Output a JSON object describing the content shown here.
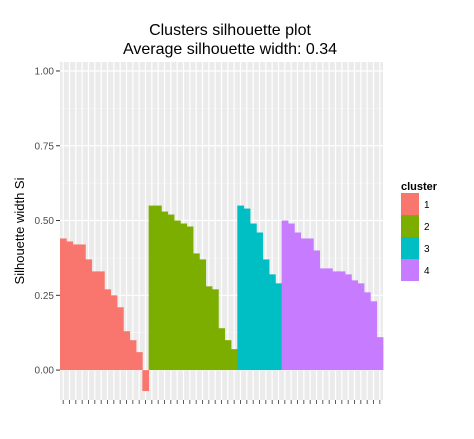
{
  "chart_data": {
    "type": "bar",
    "title": "Clusters silhouette plot",
    "subtitle": "Average silhouette width: 0.34",
    "xlabel": "",
    "ylabel": "Silhouette width Si",
    "ylim": [
      -0.1,
      1.03
    ],
    "y_ticks": [
      "0.00",
      "0.25",
      "0.50",
      "0.75",
      "1.00"
    ],
    "grid": true,
    "legend": {
      "title": "cluster",
      "placement": "right"
    },
    "series": [
      {
        "name": "1",
        "color": "#F8766D",
        "values": [
          0.44,
          0.43,
          0.42,
          0.42,
          0.37,
          0.33,
          0.33,
          0.27,
          0.25,
          0.21,
          0.13,
          0.1,
          0.06,
          -0.07
        ]
      },
      {
        "name": "2",
        "color": "#7CAE00",
        "values": [
          0.55,
          0.55,
          0.53,
          0.52,
          0.5,
          0.49,
          0.48,
          0.39,
          0.37,
          0.28,
          0.27,
          0.14,
          0.1,
          0.07
        ]
      },
      {
        "name": "3",
        "color": "#00BFC4",
        "values": [
          0.55,
          0.54,
          0.49,
          0.46,
          0.37,
          0.32,
          0.29
        ]
      },
      {
        "name": "4",
        "color": "#C77CFF",
        "values": [
          0.5,
          0.49,
          0.46,
          0.44,
          0.44,
          0.4,
          0.34,
          0.34,
          0.33,
          0.33,
          0.32,
          0.3,
          0.29,
          0.26,
          0.23,
          0.11
        ]
      }
    ]
  }
}
